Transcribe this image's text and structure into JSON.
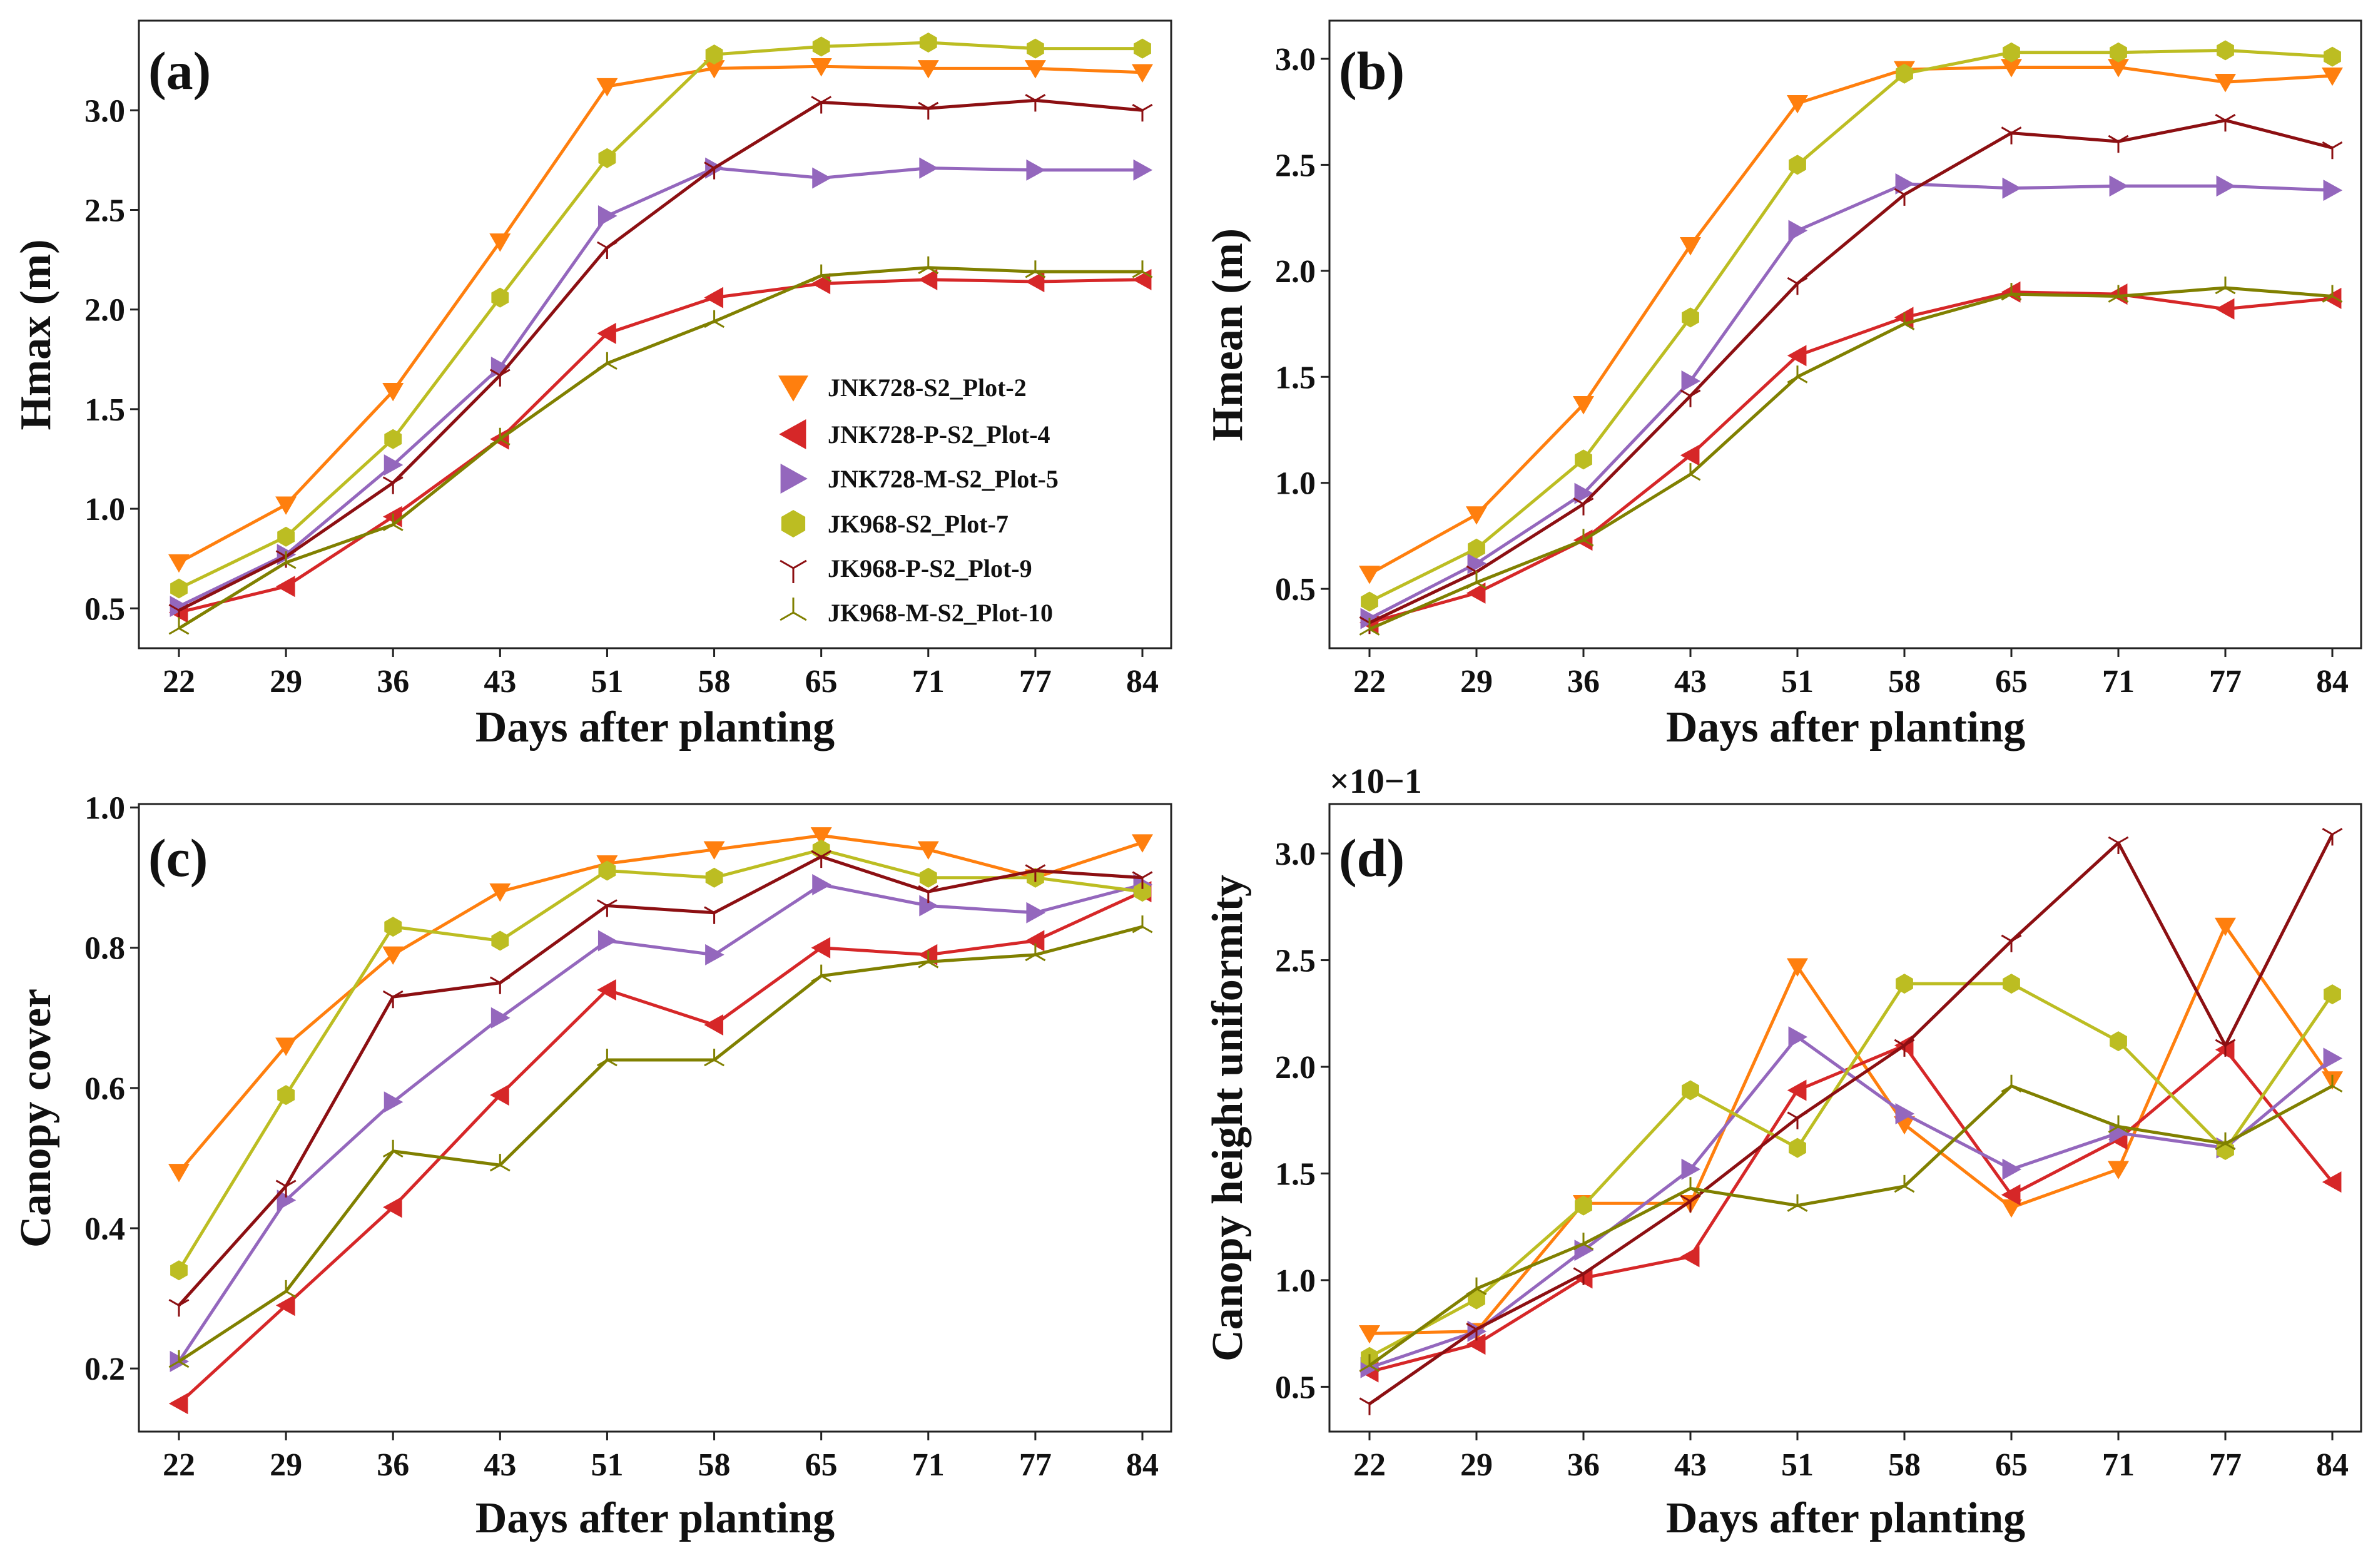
{
  "series_styles": [
    {
      "name": "JNK728-S2_Plot-2",
      "color": "#ff7f0e",
      "marker": "triangle-down"
    },
    {
      "name": "JNK728-P-S2_Plot-4",
      "color": "#d62728",
      "marker": "triangle-left"
    },
    {
      "name": "JNK728-M-S2_Plot-5",
      "color": "#9467bd",
      "marker": "triangle-right"
    },
    {
      "name": "JK968-S2_Plot-7",
      "color": "#bcbd22",
      "marker": "hexagon"
    },
    {
      "name": "JK968-P-S2_Plot-9",
      "color": "#8c0f12",
      "marker": "tri-down"
    },
    {
      "name": "JK968-M-S2_Plot-10",
      "color": "#808000",
      "marker": "tri-up"
    }
  ],
  "chart_data": [
    {
      "type": "line",
      "panel_label": "(a)",
      "title": "",
      "xlabel": "Days after planting",
      "ylabel": "Hmax (m)",
      "categories": [
        "22",
        "29",
        "36",
        "43",
        "51",
        "58",
        "65",
        "71",
        "77",
        "84"
      ],
      "ylim": [
        0.3,
        3.45
      ],
      "yticks": [
        "0.5",
        "1.0",
        "1.5",
        "2.0",
        "2.5",
        "3.0"
      ],
      "y_offset_label": "",
      "legend": "center-right",
      "series": [
        {
          "name": "JNK728-S2_Plot-2",
          "values": [
            0.73,
            1.02,
            1.59,
            2.34,
            3.12,
            3.21,
            3.22,
            3.21,
            3.21,
            3.19
          ]
        },
        {
          "name": "JNK728-P-S2_Plot-4",
          "values": [
            0.48,
            0.61,
            0.96,
            1.35,
            1.88,
            2.06,
            2.13,
            2.15,
            2.14,
            2.15
          ]
        },
        {
          "name": "JNK728-M-S2_Plot-5",
          "values": [
            0.51,
            0.77,
            1.22,
            1.71,
            2.47,
            2.71,
            2.66,
            2.71,
            2.7,
            2.7
          ]
        },
        {
          "name": "JK968-S2_Plot-7",
          "values": [
            0.6,
            0.86,
            1.35,
            2.06,
            2.76,
            3.28,
            3.32,
            3.34,
            3.31,
            3.31
          ]
        },
        {
          "name": "JK968-P-S2_Plot-9",
          "values": [
            0.49,
            0.76,
            1.13,
            1.67,
            2.31,
            2.71,
            3.04,
            3.01,
            3.05,
            3.0
          ]
        },
        {
          "name": "JK968-M-S2_Plot-10",
          "values": [
            0.4,
            0.73,
            0.92,
            1.35,
            1.73,
            1.94,
            2.17,
            2.21,
            2.19,
            2.19
          ]
        }
      ]
    },
    {
      "type": "line",
      "panel_label": "(b)",
      "title": "",
      "xlabel": "Days after planting",
      "ylabel": "Hmean (m)",
      "categories": [
        "22",
        "29",
        "36",
        "43",
        "51",
        "58",
        "65",
        "71",
        "77",
        "84"
      ],
      "ylim": [
        0.22,
        3.18
      ],
      "yticks": [
        "0.5",
        "1.0",
        "1.5",
        "2.0",
        "2.5",
        "3.0"
      ],
      "y_offset_label": "",
      "legend": "",
      "series": [
        {
          "name": "JNK728-S2_Plot-2",
          "values": [
            0.57,
            0.85,
            1.37,
            2.12,
            2.79,
            2.95,
            2.96,
            2.96,
            2.89,
            2.92
          ]
        },
        {
          "name": "JNK728-P-S2_Plot-4",
          "values": [
            0.34,
            0.48,
            0.73,
            1.13,
            1.6,
            1.78,
            1.9,
            1.89,
            1.82,
            1.87
          ]
        },
        {
          "name": "JNK728-M-S2_Plot-5",
          "values": [
            0.36,
            0.62,
            0.95,
            1.48,
            2.19,
            2.41,
            2.39,
            2.4,
            2.4,
            2.38
          ]
        },
        {
          "name": "JK968-S2_Plot-7",
          "values": [
            0.44,
            0.69,
            1.11,
            1.78,
            2.5,
            2.93,
            3.03,
            3.03,
            3.04,
            3.01
          ]
        },
        {
          "name": "JK968-P-S2_Plot-9",
          "values": [
            0.34,
            0.58,
            0.9,
            1.41,
            1.94,
            2.36,
            2.65,
            2.61,
            2.71,
            2.58
          ]
        },
        {
          "name": "JK968-M-S2_Plot-10",
          "values": [
            0.31,
            0.53,
            0.73,
            1.04,
            1.5,
            1.75,
            1.89,
            1.88,
            1.92,
            1.88
          ]
        }
      ]
    },
    {
      "type": "line",
      "panel_label": "(c)",
      "title": "",
      "xlabel": "Days after planting",
      "ylabel": "Canopy cover",
      "categories": [
        "22",
        "29",
        "36",
        "43",
        "51",
        "58",
        "65",
        "71",
        "77",
        "84"
      ],
      "ylim": [
        0.11,
        1.005
      ],
      "yticks": [
        "0.2",
        "0.4",
        "0.6",
        "0.8",
        "1.0"
      ],
      "y_offset_label": "",
      "legend": "",
      "series": [
        {
          "name": "JNK728-S2_Plot-2",
          "values": [
            0.48,
            0.66,
            0.79,
            0.88,
            0.92,
            0.94,
            0.96,
            0.94,
            0.9,
            0.95
          ]
        },
        {
          "name": "JNK728-P-S2_Plot-4",
          "values": [
            0.15,
            0.29,
            0.43,
            0.59,
            0.74,
            0.69,
            0.8,
            0.79,
            0.81,
            0.88
          ]
        },
        {
          "name": "JNK728-M-S2_Plot-5",
          "values": [
            0.21,
            0.44,
            0.58,
            0.7,
            0.81,
            0.79,
            0.89,
            0.86,
            0.85,
            0.89
          ]
        },
        {
          "name": "JK968-S2_Plot-7",
          "values": [
            0.34,
            0.59,
            0.83,
            0.81,
            0.91,
            0.9,
            0.94,
            0.9,
            0.9,
            0.88
          ]
        },
        {
          "name": "JK968-P-S2_Plot-9",
          "values": [
            0.29,
            0.46,
            0.73,
            0.75,
            0.86,
            0.85,
            0.93,
            0.88,
            0.91,
            0.9
          ]
        },
        {
          "name": "JK968-M-S2_Plot-10",
          "values": [
            0.21,
            0.31,
            0.51,
            0.49,
            0.64,
            0.64,
            0.76,
            0.78,
            0.79,
            0.83
          ]
        }
      ]
    },
    {
      "type": "line",
      "panel_label": "(d)",
      "title": "",
      "xlabel": "Days after planting",
      "ylabel": "Canopy height uniformity",
      "categories": [
        "22",
        "29",
        "36",
        "43",
        "51",
        "58",
        "65",
        "71",
        "77",
        "84"
      ],
      "ylim": [
        0.029,
        0.3232
      ],
      "yticks": [
        "0.5",
        "1.0",
        "1.5",
        "2.0",
        "2.5",
        "3.0"
      ],
      "y_offset_label": "×10−1",
      "legend": "",
      "series": [
        {
          "name": "JNK728-S2_Plot-2",
          "values": [
            0.075,
            0.076,
            0.136,
            0.136,
            0.247,
            0.173,
            0.134,
            0.152,
            0.266,
            0.194
          ]
        },
        {
          "name": "JNK728-P-S2_Plot-4",
          "values": [
            0.057,
            0.07,
            0.101,
            0.111,
            0.189,
            0.21,
            0.14,
            0.166,
            0.208,
            0.146
          ]
        },
        {
          "name": "JNK728-M-S2_Plot-5",
          "values": [
            0.059,
            0.076,
            0.114,
            0.152,
            0.214,
            0.178,
            0.152,
            0.169,
            0.162,
            0.204
          ]
        },
        {
          "name": "JK968-S2_Plot-7",
          "values": [
            0.064,
            0.091,
            0.135,
            0.189,
            0.162,
            0.239,
            0.239,
            0.212,
            0.161,
            0.234
          ]
        },
        {
          "name": "JK968-P-S2_Plot-9",
          "values": [
            0.042,
            0.077,
            0.103,
            0.137,
            0.176,
            0.21,
            0.259,
            0.305,
            0.21,
            0.309
          ]
        },
        {
          "name": "JK968-M-S2_Plot-10",
          "values": [
            0.06,
            0.096,
            0.117,
            0.143,
            0.135,
            0.144,
            0.191,
            0.172,
            0.164,
            0.191
          ]
        }
      ]
    }
  ]
}
